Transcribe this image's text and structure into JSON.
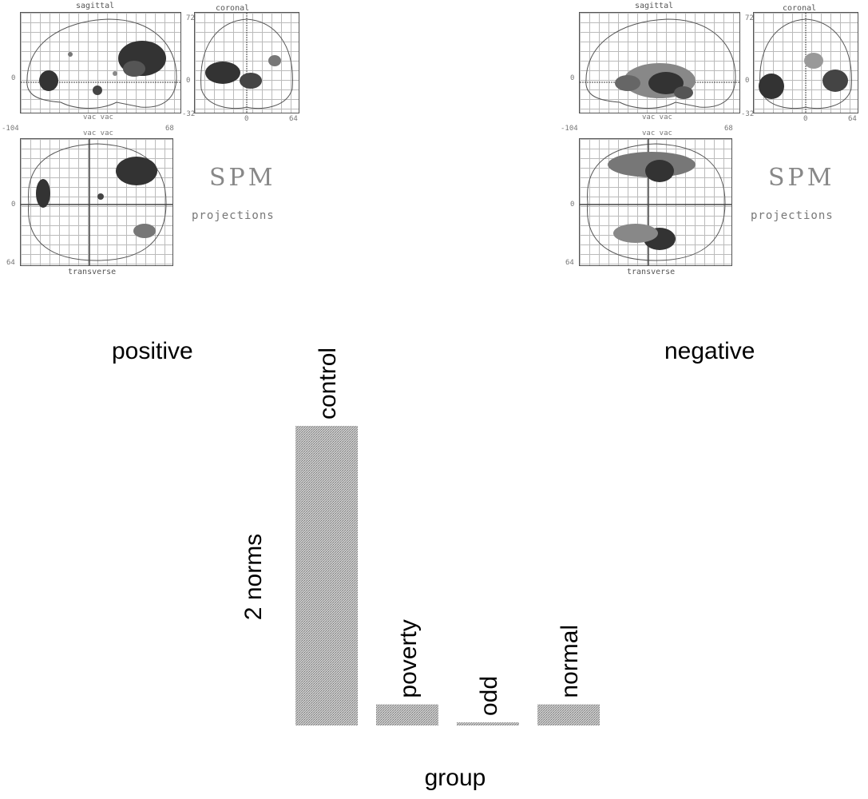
{
  "panels": [
    {
      "id": "left",
      "sagittal_title": "sagittal",
      "coronal_title": "coronal",
      "transverse_title": "transverse",
      "vac_label": "vac vac",
      "sag_y_tick": "0",
      "sag_x_min": "-104",
      "sag_x_max": "68",
      "cor_top": "72",
      "cor_y_tick": "0",
      "cor_bottom": "-32",
      "cor_x_tick": "0",
      "cor_x_max": "64",
      "tra_y_tick": "0",
      "tra_bottom": "64",
      "spm_title": "SPM",
      "spm_sub": "projections",
      "side_label": "positive"
    },
    {
      "id": "right",
      "sagittal_title": "sagittal",
      "coronal_title": "coronal",
      "transverse_title": "transverse",
      "vac_label": "vac vac",
      "sag_y_tick": "0",
      "sag_x_min": "-104",
      "sag_x_max": "68",
      "cor_top": "72",
      "cor_y_tick": "0",
      "cor_bottom": "-32",
      "cor_x_tick": "0",
      "cor_x_max": "64",
      "tra_y_tick": "0",
      "tra_bottom": "64",
      "spm_title": "SPM",
      "spm_sub": "projections",
      "side_label": "negative"
    }
  ],
  "chart_data": {
    "type": "bar",
    "categories": [
      "control",
      "poverty",
      "odd",
      "normal"
    ],
    "values": [
      14.2,
      1.0,
      0.15,
      1.0
    ],
    "xlabel": "group",
    "ylabel": "2 norms",
    "ylim": [
      0,
      14.2
    ],
    "grid": false,
    "axes_visible": false,
    "bar_color": "#b4b4b4",
    "labels_position": "above bar, rotated vertical"
  }
}
